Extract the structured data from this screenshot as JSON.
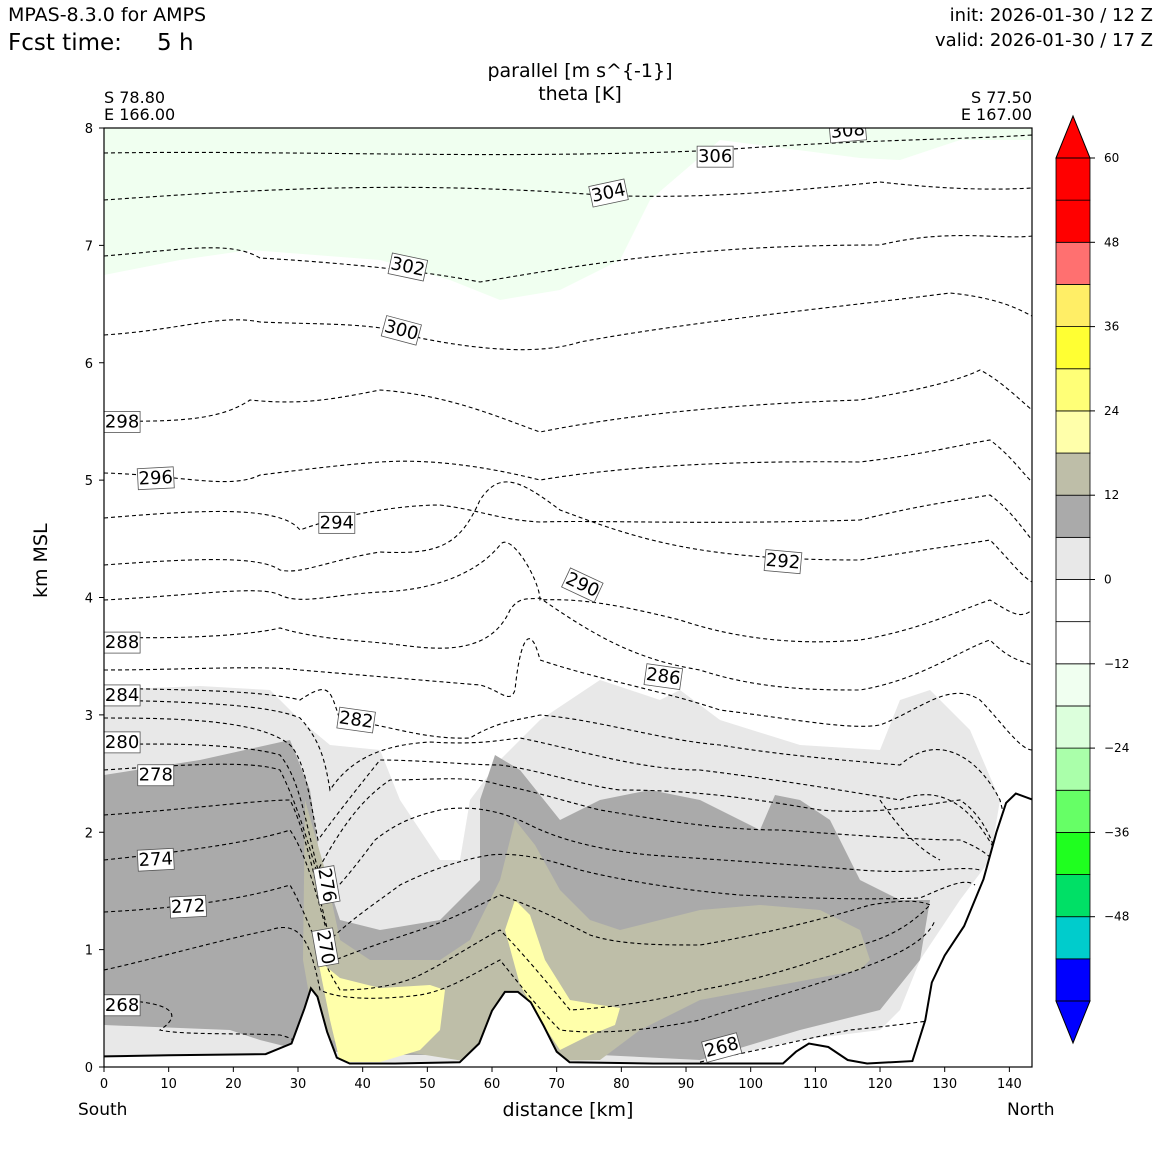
{
  "header": {
    "model": "MPAS-8.3.0 for AMPS",
    "fcst_label": "Fcst time:",
    "fcst_value": "5 h",
    "init": "init: 2026-01-30 / 12 Z",
    "valid": "valid: 2026-01-30 / 17 Z"
  },
  "plot": {
    "title_line1": "parallel [m s^{-1}]",
    "title_line2": "theta [K]",
    "left_lat": "S 78.80",
    "left_lon": "E 166.00",
    "right_lat": "S 77.50",
    "right_lon": "E 167.00",
    "xlabel": "distance [km]",
    "ylabel": "km MSL",
    "south": "South",
    "north": "North"
  },
  "chart_data": {
    "type": "cross-section",
    "x_range": [
      0,
      143.5
    ],
    "y_range": [
      0,
      8
    ],
    "x_ticks": [
      "0",
      "10",
      "20",
      "30",
      "40",
      "50",
      "60",
      "70",
      "80",
      "90",
      "100",
      "110",
      "120",
      "130",
      "140"
    ],
    "y_ticks": [
      "0",
      "1",
      "2",
      "3",
      "4",
      "5",
      "6",
      "7",
      "8"
    ],
    "colorbar": {
      "bounds": [
        -60,
        -54,
        -48,
        -42,
        -36,
        -30,
        -24,
        -18,
        -12,
        -6,
        0,
        6,
        12,
        18,
        24,
        30,
        36,
        42,
        48,
        54,
        60
      ],
      "colors": [
        "#0000ff",
        "#00cccc",
        "#00e066",
        "#1fff1f",
        "#66ff66",
        "#aaffaa",
        "#dcffdc",
        "#f0fff0",
        "#ffffff",
        "#ffffff",
        "#e8e8e8",
        "#aaaaaa",
        "#bebea8",
        "#ffffaa",
        "#ffff77",
        "#ffff33",
        "#ffee66",
        "#ff7070",
        "#ff0000",
        "#ff0000"
      ],
      "tick_labels": [
        "60",
        "48",
        "36",
        "24",
        "12",
        "0",
        "−12",
        "−24",
        "−36",
        "−48"
      ]
    },
    "terrain": [
      [
        0,
        0.09
      ],
      [
        10,
        0.1
      ],
      [
        25,
        0.11
      ],
      [
        29,
        0.2
      ],
      [
        31,
        0.5
      ],
      [
        32,
        0.67
      ],
      [
        33,
        0.6
      ],
      [
        34.5,
        0.3
      ],
      [
        36,
        0.08
      ],
      [
        38,
        0.03
      ],
      [
        45,
        0.03
      ],
      [
        55,
        0.04
      ],
      [
        58,
        0.2
      ],
      [
        60,
        0.48
      ],
      [
        62,
        0.64
      ],
      [
        64,
        0.64
      ],
      [
        66,
        0.55
      ],
      [
        68,
        0.35
      ],
      [
        70,
        0.13
      ],
      [
        72,
        0.04
      ],
      [
        85,
        0.03
      ],
      [
        105,
        0.03
      ],
      [
        107,
        0.13
      ],
      [
        109,
        0.2
      ],
      [
        112,
        0.17
      ],
      [
        115,
        0.06
      ],
      [
        118,
        0.03
      ],
      [
        125,
        0.05
      ],
      [
        127,
        0.4
      ],
      [
        128,
        0.72
      ],
      [
        130,
        0.95
      ],
      [
        133,
        1.2
      ],
      [
        136,
        1.6
      ],
      [
        138,
        2.0
      ],
      [
        139.5,
        2.25
      ],
      [
        141,
        2.33
      ],
      [
        143.5,
        2.28
      ]
    ],
    "theta_labels": [
      {
        "text": "268",
        "x": 2.8,
        "y": 0.53,
        "rot": 0
      },
      {
        "text": "268",
        "x": 95.5,
        "y": 0.17,
        "rot": -15
      },
      {
        "text": "270",
        "x": 34.3,
        "y": 1.02,
        "rot": 80
      },
      {
        "text": "272",
        "x": 13,
        "y": 1.37,
        "rot": -3
      },
      {
        "text": "274",
        "x": 8,
        "y": 1.77,
        "rot": -3
      },
      {
        "text": "276",
        "x": 34.5,
        "y": 1.55,
        "rot": 80
      },
      {
        "text": "278",
        "x": 8,
        "y": 2.49,
        "rot": 0
      },
      {
        "text": "280",
        "x": 2.8,
        "y": 2.77,
        "rot": 0
      },
      {
        "text": "282",
        "x": 39,
        "y": 2.96,
        "rot": 8
      },
      {
        "text": "284",
        "x": 2.8,
        "y": 3.17,
        "rot": 0
      },
      {
        "text": "286",
        "x": 86.5,
        "y": 3.33,
        "rot": 8
      },
      {
        "text": "288",
        "x": 2.8,
        "y": 3.62,
        "rot": 0
      },
      {
        "text": "290",
        "x": 74,
        "y": 4.11,
        "rot": 25
      },
      {
        "text": "292",
        "x": 105,
        "y": 4.31,
        "rot": 5
      },
      {
        "text": "294",
        "x": 36,
        "y": 4.64,
        "rot": 0
      },
      {
        "text": "296",
        "x": 8,
        "y": 5.02,
        "rot": -3
      },
      {
        "text": "298",
        "x": 2.8,
        "y": 5.5,
        "rot": 0
      },
      {
        "text": "300",
        "x": 46,
        "y": 6.28,
        "rot": 15
      },
      {
        "text": "302",
        "x": 47,
        "y": 6.82,
        "rot": 12
      },
      {
        "text": "304",
        "x": 78,
        "y": 7.45,
        "rot": -12
      },
      {
        "text": "306",
        "x": 94.5,
        "y": 7.76,
        "rot": 0
      },
      {
        "text": "308",
        "x": 115,
        "y": 7.98,
        "rot": -5
      }
    ]
  }
}
